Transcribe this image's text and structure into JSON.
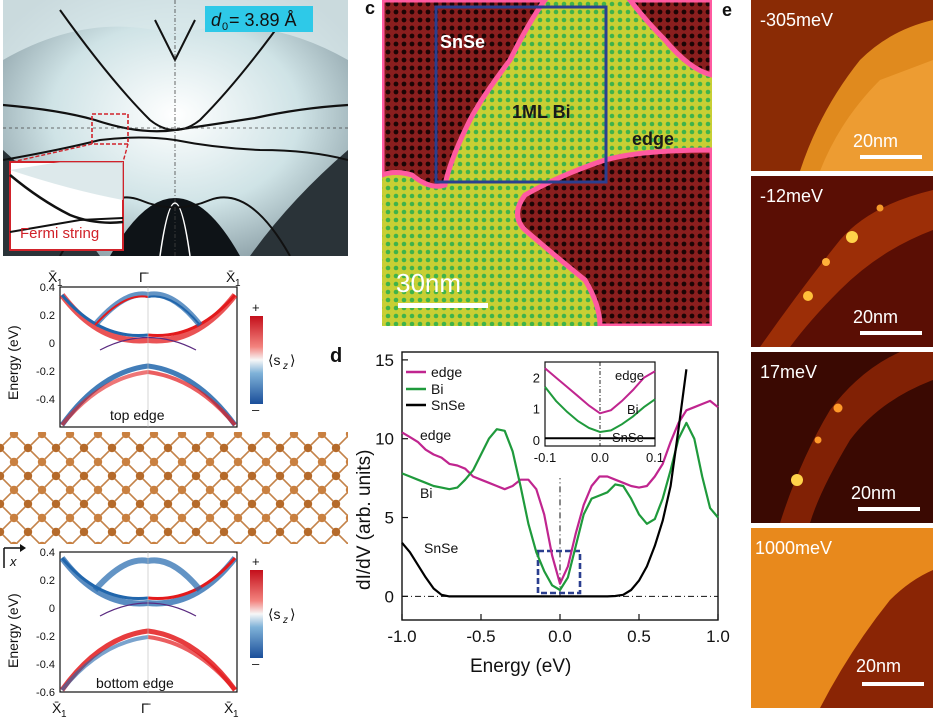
{
  "panel_a": {
    "d0_label": "d",
    "d0_sub": "0",
    "d0_value": "= 3.89 Å",
    "inset_label": "Fermi string"
  },
  "panel_b": {
    "top_ticks": [
      "X̄",
      "Γ̄",
      "X̄"
    ],
    "tick_sub": "1",
    "y_label": "Energy (eV)",
    "y_ticks": [
      "0.4",
      "0.2",
      "0",
      "-0.2",
      "-0.4",
      "-0.6"
    ],
    "top_title": "top edge",
    "bottom_title": "bottom edge",
    "colorbar_plus": "+",
    "colorbar_minus": "–",
    "colorbar_label": "⟨s",
    "colorbar_sub": "z",
    "colorbar_close": "⟩",
    "axis_x": "x",
    "colors": {
      "plus": "#e31a1c",
      "minus": "#2166ac"
    }
  },
  "panel_c": {
    "letter": "c",
    "label_snse": "SnSe",
    "label_bi": "1ML Bi",
    "label_edge": "edge",
    "scale_label": "30nm",
    "colors": {
      "bi": "#b9cc3a",
      "snse": "#4a0c0c",
      "edge": "#ff5aa0",
      "box": "#2b3f8f"
    }
  },
  "panel_d": {
    "letter": "d",
    "chart_data": {
      "type": "line",
      "xlabel": "Energy (eV)",
      "ylabel": "dI/dV (arb. units)",
      "xlim": [
        -1.0,
        1.0
      ],
      "ylim": [
        -1.5,
        15.5
      ],
      "x_ticks": [
        "-1.0",
        "-0.5",
        "0.0",
        "0.5",
        "1.0"
      ],
      "y_ticks": [
        "0",
        "5",
        "10",
        "15"
      ],
      "legend": [
        "edge",
        "Bi",
        "SnSe"
      ],
      "annotations": [
        "edge",
        "Bi",
        "SnSe"
      ],
      "series": [
        {
          "name": "edge",
          "color": "#c0258f",
          "x": [
            -1.0,
            -0.95,
            -0.9,
            -0.85,
            -0.8,
            -0.75,
            -0.7,
            -0.65,
            -0.6,
            -0.55,
            -0.5,
            -0.45,
            -0.4,
            -0.35,
            -0.3,
            -0.25,
            -0.2,
            -0.15,
            -0.1,
            -0.05,
            0.0,
            0.05,
            0.1,
            0.15,
            0.2,
            0.25,
            0.3,
            0.35,
            0.4,
            0.45,
            0.5,
            0.55,
            0.6,
            0.65,
            0.7,
            0.75,
            0.8,
            0.85,
            0.9,
            0.95,
            1.0
          ],
          "y": [
            10.4,
            10.1,
            9.8,
            9.3,
            9.0,
            8.8,
            8.4,
            8.3,
            8.1,
            7.6,
            7.4,
            7.2,
            7.0,
            6.8,
            7.0,
            7.4,
            7.4,
            6.8,
            5.2,
            2.6,
            0.8,
            1.9,
            4.0,
            5.8,
            7.0,
            7.6,
            7.6,
            7.4,
            7.2,
            7.0,
            6.9,
            7.0,
            7.6,
            8.4,
            9.8,
            11.0,
            11.8,
            12.0,
            12.2,
            12.4,
            12.0
          ]
        },
        {
          "name": "Bi",
          "color": "#1f9a3c",
          "x": [
            -1.0,
            -0.95,
            -0.9,
            -0.85,
            -0.8,
            -0.75,
            -0.7,
            -0.65,
            -0.6,
            -0.55,
            -0.5,
            -0.45,
            -0.4,
            -0.35,
            -0.3,
            -0.25,
            -0.2,
            -0.15,
            -0.1,
            -0.05,
            0.0,
            0.05,
            0.1,
            0.15,
            0.2,
            0.25,
            0.3,
            0.35,
            0.4,
            0.45,
            0.5,
            0.55,
            0.6,
            0.65,
            0.7,
            0.75,
            0.8,
            0.85,
            0.9,
            0.95,
            1.0
          ],
          "y": [
            7.8,
            7.6,
            7.4,
            7.2,
            7.0,
            6.9,
            6.8,
            6.9,
            7.4,
            8.0,
            9.0,
            10.0,
            10.6,
            10.5,
            9.2,
            7.0,
            4.6,
            2.8,
            1.6,
            0.7,
            0.4,
            1.2,
            3.2,
            5.2,
            6.2,
            6.4,
            6.6,
            7.1,
            7.0,
            6.2,
            5.2,
            4.6,
            4.9,
            6.2,
            8.0,
            10.0,
            11.0,
            10.0,
            7.6,
            5.6,
            5.0
          ]
        },
        {
          "name": "SnSe",
          "color": "#000000",
          "x": [
            -1.0,
            -0.95,
            -0.9,
            -0.85,
            -0.8,
            -0.75,
            -0.7,
            -0.65,
            -0.6,
            -0.5,
            -0.4,
            -0.3,
            -0.2,
            -0.1,
            0.0,
            0.1,
            0.2,
            0.3,
            0.35,
            0.4,
            0.45,
            0.5,
            0.55,
            0.6,
            0.65,
            0.7,
            0.75,
            0.8
          ],
          "y": [
            3.4,
            2.8,
            2.0,
            1.2,
            0.5,
            0.1,
            0.0,
            0.0,
            0.0,
            0.0,
            0.0,
            0.0,
            0.0,
            0.0,
            0.0,
            0.0,
            0.0,
            0.0,
            0.02,
            0.1,
            0.4,
            1.0,
            1.9,
            3.2,
            4.8,
            7.0,
            10.6,
            14.4
          ]
        }
      ],
      "inset": {
        "xlim": [
          -0.1,
          0.1
        ],
        "ylim": [
          -0.2,
          2.5
        ],
        "x_ticks": [
          "-0.1",
          "0.0",
          "0.1"
        ],
        "y_ticks": [
          "0",
          "1",
          "2"
        ],
        "labels": [
          "edge",
          "Bi",
          "SnSe"
        ],
        "series": [
          {
            "name": "edge",
            "color": "#c0258f",
            "x": [
              -0.1,
              -0.08,
              -0.06,
              -0.04,
              -0.02,
              0.0,
              0.02,
              0.04,
              0.06,
              0.08,
              0.1
            ],
            "y": [
              2.3,
              2.0,
              1.7,
              1.4,
              1.1,
              0.85,
              0.95,
              1.25,
              1.6,
              2.0,
              2.2
            ]
          },
          {
            "name": "Bi",
            "color": "#1f9a3c",
            "x": [
              -0.1,
              -0.08,
              -0.06,
              -0.04,
              -0.02,
              0.0,
              0.02,
              0.04,
              0.06,
              0.08,
              0.1
            ],
            "y": [
              1.7,
              1.25,
              0.9,
              0.6,
              0.38,
              0.25,
              0.3,
              0.5,
              0.75,
              1.05,
              1.3
            ]
          },
          {
            "name": "SnSe",
            "color": "#000000",
            "x": [
              -0.1,
              0.1
            ],
            "y": [
              0.05,
              0.05
            ]
          }
        ]
      }
    }
  },
  "panel_e": {
    "letter": "e",
    "tiles": [
      {
        "energy": "-305meV",
        "scale": "20nm"
      },
      {
        "energy": "-12meV",
        "scale": "20nm"
      },
      {
        "energy": "17meV",
        "scale": "20nm"
      },
      {
        "energy": "1000meV",
        "scale": "20nm"
      }
    ]
  }
}
